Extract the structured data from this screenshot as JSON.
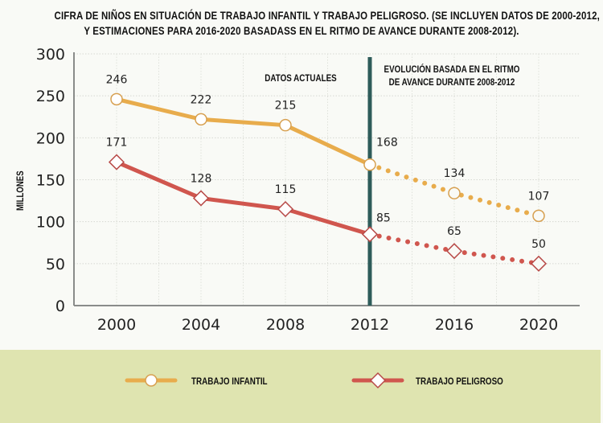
{
  "chart_data": {
    "type": "line",
    "title": [
      "CIFRA DE NIÑOS EN SITUACIÓN DE TRABAJO INFANTIL Y TRABAJO PELIGROSO. (SE INCLUYEN  DATOS DE 2000-2012,",
      "Y ESTIMACIONES PARA 2016-2020 BASADASS EN EL RITMO DE AVANCE DURANTE 2008-2012)."
    ],
    "xlabel": "",
    "ylabel": "MILLONES",
    "x": [
      2000,
      2004,
      2008,
      2012,
      2016,
      2020
    ],
    "x_tick_labels": [
      "2000",
      "2004",
      "2008",
      "2012",
      "2016",
      "2020"
    ],
    "ylim": [
      0,
      300
    ],
    "y_ticks": [
      0,
      50,
      100,
      150,
      200,
      250,
      300
    ],
    "grid": true,
    "divider_x": 2012,
    "annotations": {
      "left": "DATOS ACTUALES",
      "right": [
        "EVOLUCIÓN BASADA EN EL RITMO",
        "DE AVANCE DURANTE 2008-2012"
      ]
    },
    "series": [
      {
        "name": "TRABAJO INFANTIL",
        "marker": "circle",
        "color": "#e8ac4c",
        "values": [
          246,
          222,
          215,
          168,
          134,
          107
        ],
        "projected_from_index": 3
      },
      {
        "name": "TRABAJO PELIGROSO",
        "marker": "diamond",
        "color": "#d0564e",
        "values": [
          171,
          128,
          115,
          85,
          65,
          50
        ],
        "projected_from_index": 3
      }
    ],
    "legend_position": "bottom"
  },
  "colors": {
    "divider": "#2e5c5a",
    "legend_background": "#dfe4b0",
    "background": "#f9faf6",
    "marker_stroke_infantil": "#d7a050",
    "marker_stroke_peligroso": "#b84a48"
  }
}
